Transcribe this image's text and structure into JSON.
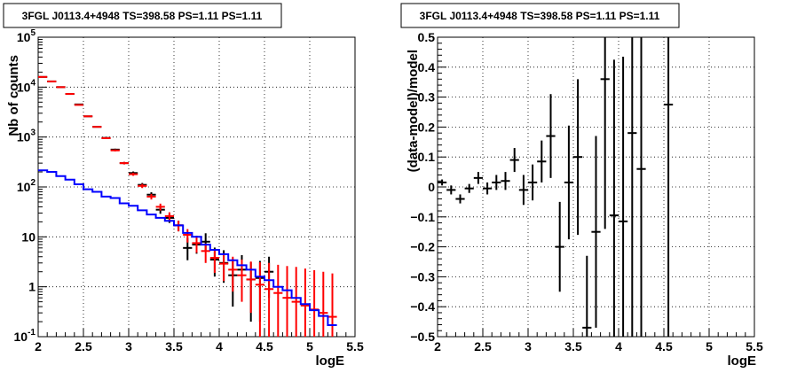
{
  "chart_data": [
    {
      "type": "scatter",
      "title": "3FGL J0113.4+4948 TS=398.58 PS=1.11 PS=1.11",
      "xlabel": "logE",
      "ylabel": "Nb of counts",
      "xlim": [
        2,
        5.5
      ],
      "ylim": [
        0.1,
        100000
      ],
      "yscale": "log",
      "grid": true,
      "x_ticks": [
        "2",
        "2.5",
        "3",
        "3.5",
        "4",
        "4.5",
        "5",
        "5.5"
      ],
      "y_ticks": [
        "10^{-1}",
        "1",
        "10",
        "10^{2}",
        "10^{3}",
        "10^{4}",
        "10^{5}"
      ],
      "series": [
        {
          "kind": "data_points",
          "color": "#000000",
          "x": [
            2.05,
            2.15,
            2.25,
            2.35,
            2.45,
            2.55,
            2.65,
            2.75,
            2.85,
            2.95,
            3.05,
            3.15,
            3.25,
            3.35,
            3.45,
            3.55,
            3.65,
            3.75,
            3.85,
            3.95,
            4.05,
            4.15,
            4.25,
            4.35,
            4.45,
            4.55
          ],
          "y": [
            16000,
            13000,
            10000,
            7300,
            4500,
            2600,
            1600,
            960,
            560,
            300,
            190,
            110,
            70,
            35,
            24,
            17,
            6,
            7,
            8,
            3.5,
            3,
            1.7,
            2.2,
            1.4,
            1.5,
            2
          ],
          "yerr_low": [
            130,
            120,
            100,
            85,
            70,
            50,
            40,
            31,
            24,
            17,
            14,
            10,
            8.4,
            6,
            5,
            4.1,
            2.6,
            2.4,
            2.7,
            1.9,
            1.8,
            1.3,
            1.5,
            1.2,
            1.3,
            1.4
          ],
          "yerr_high": [
            130,
            120,
            100,
            85,
            70,
            50,
            40,
            31,
            24,
            17,
            14,
            10,
            8.4,
            6,
            5,
            4.1,
            3.5,
            3.5,
            3.8,
            2.6,
            2.4,
            1.9,
            2.1,
            1.7,
            1.8,
            2.0
          ]
        },
        {
          "kind": "model_points",
          "color": "#ff0000",
          "x": [
            2.05,
            2.15,
            2.25,
            2.35,
            2.45,
            2.55,
            2.65,
            2.75,
            2.85,
            2.95,
            3.05,
            3.15,
            3.25,
            3.35,
            3.45,
            3.55,
            3.65,
            3.75,
            3.85,
            3.95,
            4.05,
            4.15,
            4.25,
            4.35,
            4.45,
            4.55,
            4.65,
            4.75,
            4.85,
            4.95,
            5.05,
            5.15,
            5.25
          ],
          "y": [
            16000,
            13000,
            10000,
            7300,
            4400,
            2600,
            1600,
            950,
            540,
            300,
            180,
            105,
            64,
            40,
            26,
            17,
            11,
            7.5,
            5.2,
            3.8,
            2.9,
            2.2,
            1.7,
            1.4,
            1.1,
            0.9,
            0.75,
            0.6,
            0.5,
            0.42,
            0.35,
            0.3,
            0.25
          ],
          "yerr_low": [
            130,
            120,
            100,
            85,
            70,
            50,
            40,
            31,
            24,
            17,
            13,
            10,
            8,
            6.3,
            5.1,
            4.1,
            3.3,
            2.7,
            2.2,
            1.9,
            1.6,
            1.4,
            1.2,
            1.1,
            1,
            0.9,
            0.75,
            0.6,
            0.5,
            0.42,
            0.35,
            0.3,
            0.25
          ],
          "yerr_high": [
            130,
            120,
            100,
            85,
            70,
            50,
            40,
            31,
            24,
            17,
            13,
            10,
            8,
            6.3,
            5.1,
            4.1,
            3.3,
            2.7,
            2.2,
            1.9,
            1.6,
            1.8,
            1.8,
            1.8,
            2.0,
            2.1,
            2.0,
            2.0,
            2.0,
            1.9,
            1.8,
            1.7,
            1.6
          ]
        },
        {
          "kind": "background_histogram",
          "color": "#0000ff",
          "edges": [
            2,
            2.1,
            2.2,
            2.3,
            2.4,
            2.5,
            2.6,
            2.7,
            2.8,
            2.9,
            3,
            3.1,
            3.2,
            3.3,
            3.4,
            3.5,
            3.6,
            3.7,
            3.8,
            3.9,
            4,
            4.1,
            4.2,
            4.3,
            4.4,
            4.5,
            4.6,
            4.7,
            4.8,
            4.9,
            5,
            5.1,
            5.2,
            5.3
          ],
          "values": [
            215,
            200,
            165,
            140,
            113,
            90,
            80,
            64,
            60,
            47,
            42,
            34,
            28,
            24,
            21,
            17,
            12,
            10,
            7,
            5.5,
            4.5,
            3.4,
            2.7,
            2.2,
            1.6,
            1.35,
            1.0,
            0.85,
            0.6,
            0.45,
            0.34,
            0.26,
            0.17
          ]
        }
      ]
    },
    {
      "type": "scatter",
      "title": "3FGL J0113.4+4948 TS=398.58 PS=1.11 PS=1.11",
      "xlabel": "logE",
      "ylabel": "(data-model)/model",
      "xlim": [
        2,
        5.5
      ],
      "ylim": [
        -0.5,
        0.5
      ],
      "grid": true,
      "x_ticks": [
        "2",
        "2.5",
        "3",
        "3.5",
        "4",
        "4.5",
        "5",
        "5.5"
      ],
      "y_ticks": [
        "−0.5",
        "−0.4",
        "−0.3",
        "−0.2",
        "−0.1",
        "0",
        "0.1",
        "0.2",
        "0.3",
        "0.4",
        "0.5"
      ],
      "series": [
        {
          "kind": "residuals",
          "color": "#000000",
          "x": [
            2.05,
            2.15,
            2.25,
            2.35,
            2.45,
            2.55,
            2.65,
            2.75,
            2.85,
            2.95,
            3.05,
            3.15,
            3.25,
            3.35,
            3.45,
            3.55,
            3.65,
            3.75,
            3.85,
            3.95,
            4.05,
            4.15,
            4.25,
            4.55
          ],
          "y": [
            0.015,
            -0.01,
            -0.04,
            -0.005,
            0.03,
            -0.005,
            0.015,
            0.02,
            0.09,
            -0.01,
            0.015,
            0.085,
            0.17,
            -0.2,
            0.015,
            0.1,
            -0.47,
            -0.15,
            0.36,
            -0.095,
            -0.115,
            0.18,
            0.06,
            0.275
          ],
          "yerr": [
            0.01,
            0.015,
            0.015,
            0.015,
            0.02,
            0.02,
            0.025,
            0.03,
            0.04,
            0.05,
            0.06,
            0.07,
            0.14,
            0.15,
            0.19,
            0.26,
            0.24,
            0.32,
            0.5,
            0.52,
            0.55,
            0.75,
            0.85,
            0.9
          ]
        }
      ]
    }
  ]
}
